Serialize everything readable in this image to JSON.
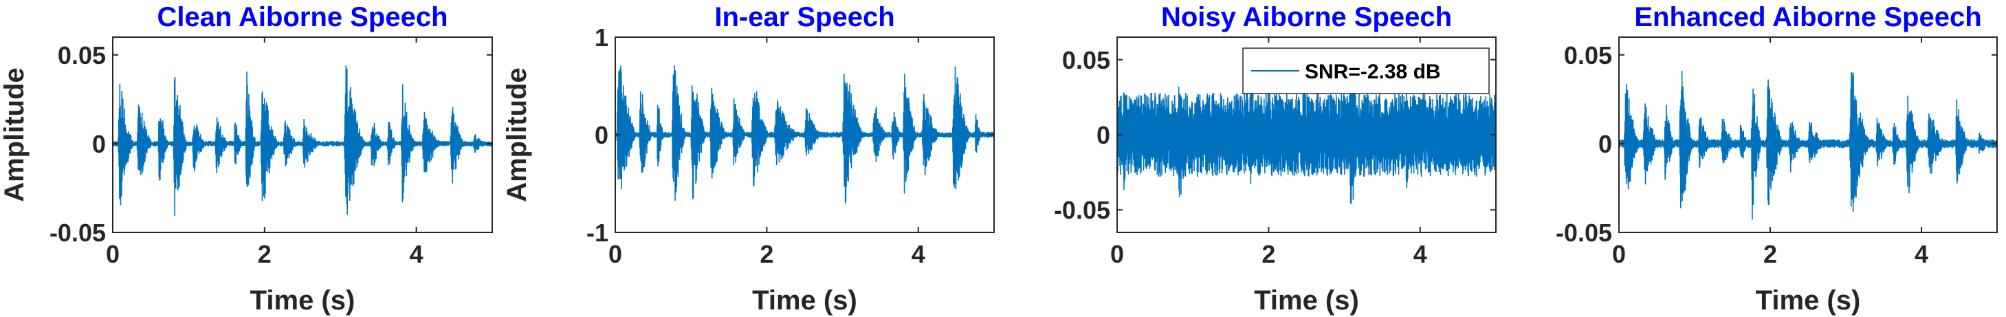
{
  "chart_data": [
    {
      "type": "line",
      "title": "Clean Aiborne Speech",
      "xlabel": "Time (s)",
      "ylabel": "Amplitude",
      "xlim": [
        0,
        5
      ],
      "ylim": [
        -0.05,
        0.06
      ],
      "xticks": [
        0,
        2,
        4
      ],
      "xtick_labels": [
        "0",
        "2",
        "4"
      ],
      "yticks": [
        -0.05,
        0,
        0.05
      ],
      "ytick_labels": [
        "-0.05",
        "0",
        "0.05"
      ],
      "color": "#0072bd",
      "grid": false,
      "noise_floor": 0.0015,
      "bursts": [
        [
          0.07,
          0.3,
          0.045
        ],
        [
          0.32,
          0.55,
          0.03
        ],
        [
          0.6,
          0.75,
          0.03
        ],
        [
          0.8,
          1.0,
          0.058
        ],
        [
          1.05,
          1.25,
          0.02
        ],
        [
          1.35,
          1.55,
          0.02
        ],
        [
          1.6,
          1.72,
          0.018
        ],
        [
          1.75,
          1.9,
          0.05
        ],
        [
          1.95,
          2.2,
          0.047
        ],
        [
          2.25,
          2.45,
          0.02
        ],
        [
          2.5,
          2.75,
          0.017
        ],
        [
          3.05,
          3.35,
          0.055
        ],
        [
          3.4,
          3.58,
          0.02
        ],
        [
          3.62,
          3.75,
          0.018
        ],
        [
          3.8,
          4.0,
          0.04
        ],
        [
          4.08,
          4.35,
          0.025
        ],
        [
          4.45,
          4.65,
          0.03
        ],
        [
          4.75,
          4.95,
          0.007
        ]
      ]
    },
    {
      "type": "line",
      "title": "In-ear Speech",
      "xlabel": "Time (s)",
      "ylabel": "Amplitude",
      "xlim": [
        0,
        5
      ],
      "ylim": [
        -1,
        1
      ],
      "xticks": [
        0,
        2,
        4
      ],
      "xtick_labels": [
        "0",
        "2",
        "4"
      ],
      "yticks": [
        -1,
        0,
        1
      ],
      "ytick_labels": [
        "-1",
        "0",
        "1"
      ],
      "color": "#0072bd",
      "grid": false,
      "noise_floor": 0.03,
      "bursts": [
        [
          0.02,
          0.3,
          1.0
        ],
        [
          0.32,
          0.5,
          0.7
        ],
        [
          0.55,
          0.65,
          0.5
        ],
        [
          0.75,
          0.95,
          1.0
        ],
        [
          1.0,
          1.22,
          0.9
        ],
        [
          1.25,
          1.5,
          0.6
        ],
        [
          1.55,
          1.75,
          0.45
        ],
        [
          1.8,
          2.05,
          0.75
        ],
        [
          2.1,
          2.45,
          0.45
        ],
        [
          2.5,
          2.75,
          0.35
        ],
        [
          3.0,
          3.3,
          0.95
        ],
        [
          3.4,
          3.6,
          0.45
        ],
        [
          3.65,
          3.78,
          0.4
        ],
        [
          3.8,
          4.0,
          0.8
        ],
        [
          4.05,
          4.3,
          0.55
        ],
        [
          4.45,
          4.7,
          1.0
        ],
        [
          4.75,
          4.85,
          0.3
        ]
      ]
    },
    {
      "type": "line",
      "title": "Noisy Aiborne Speech",
      "xlabel": "Time (s)",
      "ylabel": "",
      "xlim": [
        0,
        5
      ],
      "ylim": [
        -0.065,
        0.065
      ],
      "xticks": [
        0,
        2,
        4
      ],
      "xtick_labels": [
        "0",
        "2",
        "4"
      ],
      "yticks": [
        -0.05,
        0,
        0.05
      ],
      "ytick_labels": [
        "-0.05",
        "0",
        "0.05"
      ],
      "color": "#0072bd",
      "grid": false,
      "legend": "SNR=-2.38 dB",
      "legend_position": "top-right",
      "noise_floor": 0.028,
      "bursts": [
        [
          0.07,
          0.3,
          0.048
        ],
        [
          0.8,
          1.0,
          0.062
        ],
        [
          1.75,
          1.9,
          0.052
        ],
        [
          1.95,
          2.2,
          0.05
        ],
        [
          3.05,
          3.35,
          0.065
        ],
        [
          3.8,
          4.0,
          0.045
        ],
        [
          4.45,
          4.65,
          0.04
        ]
      ]
    },
    {
      "type": "line",
      "title": "Enhanced Aiborne Speech",
      "xlabel": "Time (s)",
      "ylabel": "",
      "xlim": [
        0,
        5
      ],
      "ylim": [
        -0.05,
        0.06
      ],
      "xticks": [
        0,
        2,
        4
      ],
      "xtick_labels": [
        "0",
        "2",
        "4"
      ],
      "yticks": [
        -0.05,
        0,
        0.05
      ],
      "ytick_labels": [
        "-0.05",
        "0",
        "0.05"
      ],
      "color": "#0072bd",
      "grid": false,
      "noise_floor": 0.0025,
      "bursts": [
        [
          0.07,
          0.3,
          0.043
        ],
        [
          0.32,
          0.55,
          0.03
        ],
        [
          0.6,
          0.75,
          0.03
        ],
        [
          0.8,
          1.0,
          0.057
        ],
        [
          1.05,
          1.25,
          0.02
        ],
        [
          1.35,
          1.55,
          0.02
        ],
        [
          1.6,
          1.72,
          0.018
        ],
        [
          1.75,
          1.9,
          0.05
        ],
        [
          1.95,
          2.2,
          0.046
        ],
        [
          2.25,
          2.45,
          0.02
        ],
        [
          2.5,
          2.75,
          0.017
        ],
        [
          3.05,
          3.35,
          0.054
        ],
        [
          3.4,
          3.58,
          0.02
        ],
        [
          3.62,
          3.75,
          0.018
        ],
        [
          3.8,
          4.0,
          0.04
        ],
        [
          4.08,
          4.35,
          0.025
        ],
        [
          4.45,
          4.65,
          0.03
        ],
        [
          4.75,
          4.95,
          0.008
        ]
      ]
    }
  ]
}
